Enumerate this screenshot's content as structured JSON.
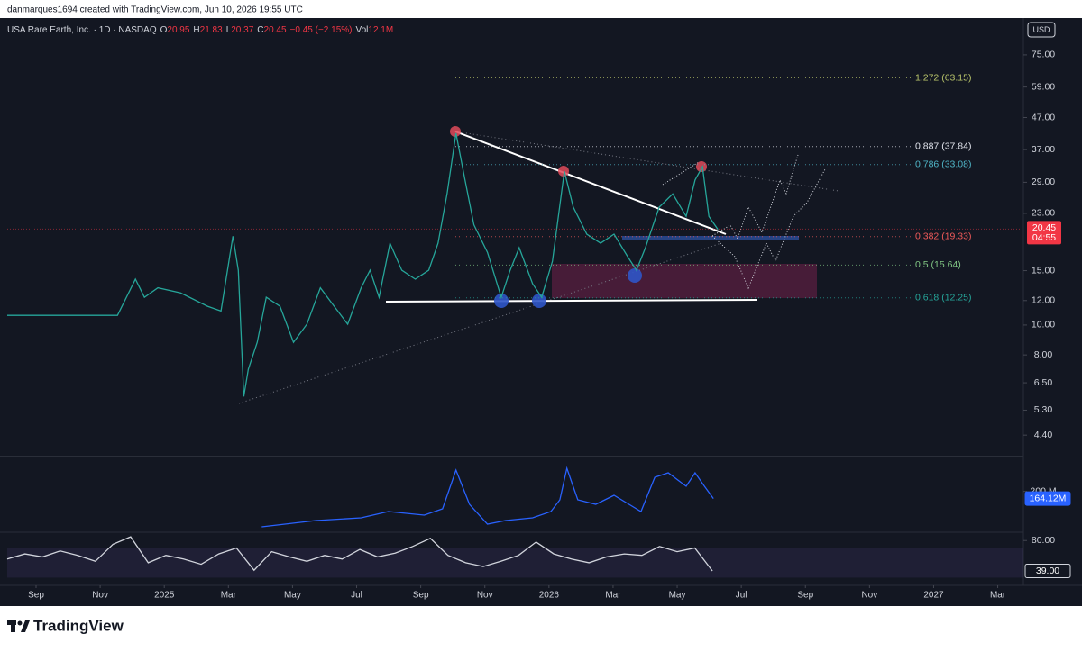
{
  "header": {
    "credit": "danmarques1694 created with TradingView.com, Jun 10, 2026 19:55 UTC",
    "symbol": "USA Rare Earth, Inc. · 1D · NASDAQ",
    "ohlc": [
      {
        "key": "O",
        "value": "20.95"
      },
      {
        "key": "H",
        "value": "21.83"
      },
      {
        "key": "L",
        "value": "20.37"
      },
      {
        "key": "C",
        "value": "20.45"
      }
    ],
    "change": "−0.45 (−2.15%)",
    "volume_key": "Vol",
    "volume": "12.1M",
    "currency": "USD"
  },
  "chart_data": [
    {
      "type": "line",
      "color": "#26a69a",
      "log_scale": true,
      "grid": false,
      "x": [
        -0.9,
        2.54,
        3.1,
        3.38,
        3.8,
        4.51,
        5.35,
        5.77,
        6.14,
        6.31,
        6.48,
        6.62,
        6.9,
        7.18,
        7.61,
        8.03,
        8.45,
        8.87,
        9.3,
        9.72,
        10.14,
        10.42,
        10.7,
        11.04,
        11.41,
        11.83,
        12.25,
        12.54,
        12.82,
        13.1,
        13.38,
        13.66,
        14.08,
        14.51,
        14.79,
        15.07,
        15.49,
        15.77,
        16.11,
        16.48,
        16.76,
        17.18,
        17.61,
        18.03,
        18.45,
        18.73,
        19.01,
        19.44,
        19.86,
        20.28,
        20.56,
        20.79,
        20.99,
        21.27
      ],
      "values": [
        10.75,
        10.75,
        14.08,
        12.3,
        13.2,
        12.7,
        11.5,
        11.1,
        19.4,
        15.05,
        5.87,
        7.19,
        8.79,
        12.3,
        11.5,
        8.79,
        10.06,
        13.2,
        11.5,
        10.06,
        13.2,
        15.05,
        12.3,
        18.4,
        15.05,
        14.08,
        15.05,
        18.4,
        26.6,
        41.8,
        29.5,
        21.1,
        17.2,
        12.3,
        15.05,
        17.8,
        13.6,
        12.3,
        16.1,
        31.5,
        24.1,
        19.7,
        18.4,
        19.7,
        16.7,
        15.05,
        17.8,
        24.1,
        26.6,
        22.5,
        29.5,
        32.6,
        22.5,
        20.4
      ],
      "xlim": [
        -0.9,
        30.8
      ],
      "xticks": [
        {
          "value": 0,
          "label": "Sep"
        },
        {
          "value": 2,
          "label": "Nov"
        },
        {
          "value": 4,
          "label": "2025"
        },
        {
          "value": 6,
          "label": "Mar"
        },
        {
          "value": 8,
          "label": "May"
        },
        {
          "value": 10,
          "label": "Jul"
        },
        {
          "value": 12,
          "label": "Sep"
        },
        {
          "value": 14,
          "label": "Nov"
        },
        {
          "value": 16,
          "label": "2026"
        },
        {
          "value": 18,
          "label": "Mar"
        },
        {
          "value": 20,
          "label": "May"
        },
        {
          "value": 22,
          "label": "Jul"
        },
        {
          "value": 24,
          "label": "Sep"
        },
        {
          "value": 26,
          "label": "Nov"
        },
        {
          "value": 28,
          "label": "2027"
        },
        {
          "value": 30,
          "label": "Mar"
        }
      ],
      "ylim": [
        3.8,
        97.4
      ],
      "yticks": [
        {
          "value": 75,
          "label": "75.00"
        },
        {
          "value": 59,
          "label": "59.00"
        },
        {
          "value": 47,
          "label": "47.00"
        },
        {
          "value": 37,
          "label": "37.00"
        },
        {
          "value": 29,
          "label": "29.00"
        },
        {
          "value": 23,
          "label": "23.00"
        },
        {
          "value": 15,
          "label": "15.00"
        },
        {
          "value": 12,
          "label": "12.00"
        },
        {
          "value": 10,
          "label": "10.00"
        },
        {
          "value": 8,
          "label": "8.00"
        },
        {
          "value": 6.5,
          "label": "6.50"
        },
        {
          "value": 5.3,
          "label": "5.30"
        },
        {
          "value": 4.4,
          "label": "4.40"
        }
      ],
      "last_price": 20.45,
      "countdown": "04:55",
      "last_color": "#f23645",
      "levels": [
        {
          "label": "1.272 (63.15)",
          "value": 63.15,
          "color": "#b8c46a"
        },
        {
          "label": "0.887 (37.84)",
          "value": 37.84,
          "color": "#e0e3eb"
        },
        {
          "label": "0.786 (33.08)",
          "value": 33.08,
          "color": "#4fb5c7"
        },
        {
          "label": "0.382 (19.33)",
          "value": 19.33,
          "color": "#f05a5a"
        },
        {
          "label": "0.5 (15.64)",
          "value": 15.64,
          "color": "#81c784"
        },
        {
          "label": "0.618 (12.25)",
          "value": 12.25,
          "color": "#26a69a"
        }
      ]
    },
    {
      "type": "line",
      "color": "#2962ff",
      "x": [
        7.04,
        8.73,
        10.14,
        10.99,
        12.11,
        12.68,
        13.1,
        13.52,
        14.08,
        14.65,
        15.49,
        16.06,
        16.34,
        16.56,
        16.9,
        17.46,
        18.03,
        18.59,
        18.87,
        19.3,
        19.72,
        20.28,
        20.56,
        20.85,
        21.13
      ],
      "values": [
        22.6,
        54.1,
        67.7,
        99.3,
        81.2,
        112.8,
        306.8,
        135.4,
        36.1,
        54.1,
        67.7,
        99.3,
        157.9,
        315.8,
        157.9,
        135.4,
        180.5,
        126.3,
        99.3,
        270.7,
        293.3,
        225.6,
        293.3,
        225.6,
        164.12
      ],
      "ylim": [
        0,
        370
      ],
      "yticks": [
        {
          "value": 200,
          "label": "200 M"
        }
      ],
      "last": {
        "value": 164.12,
        "label": "164.12M"
      }
    },
    {
      "type": "line",
      "color": "#d1d4dc",
      "x": [
        -0.9,
        -0.35,
        0.2,
        0.75,
        1.3,
        1.85,
        2.4,
        2.95,
        3.5,
        4.05,
        4.6,
        5.15,
        5.7,
        6.25,
        6.8,
        7.35,
        7.9,
        8.45,
        9.0,
        9.55,
        10.1,
        10.65,
        11.2,
        11.75,
        12.3,
        12.85,
        13.4,
        13.95,
        14.5,
        15.05,
        15.6,
        16.15,
        16.7,
        17.25,
        17.8,
        18.35,
        18.9,
        19.45,
        20.0,
        20.55,
        21.1
      ],
      "values": [
        55,
        62,
        58,
        66,
        60,
        52,
        75,
        85,
        50,
        60,
        55,
        48,
        62,
        70,
        40,
        65,
        58,
        52,
        60,
        55,
        68,
        58,
        63,
        72,
        83,
        60,
        50,
        45,
        52,
        60,
        78,
        62,
        55,
        50,
        58,
        62,
        60,
        72,
        65,
        70,
        39
      ],
      "ylim": [
        22,
        90
      ],
      "yticks": [
        {
          "value": 80,
          "label": "80.00"
        }
      ],
      "band": [
        30,
        70
      ],
      "last": {
        "value": 39,
        "label": "39.00"
      }
    }
  ],
  "footer": {
    "brand": "TradingView"
  }
}
